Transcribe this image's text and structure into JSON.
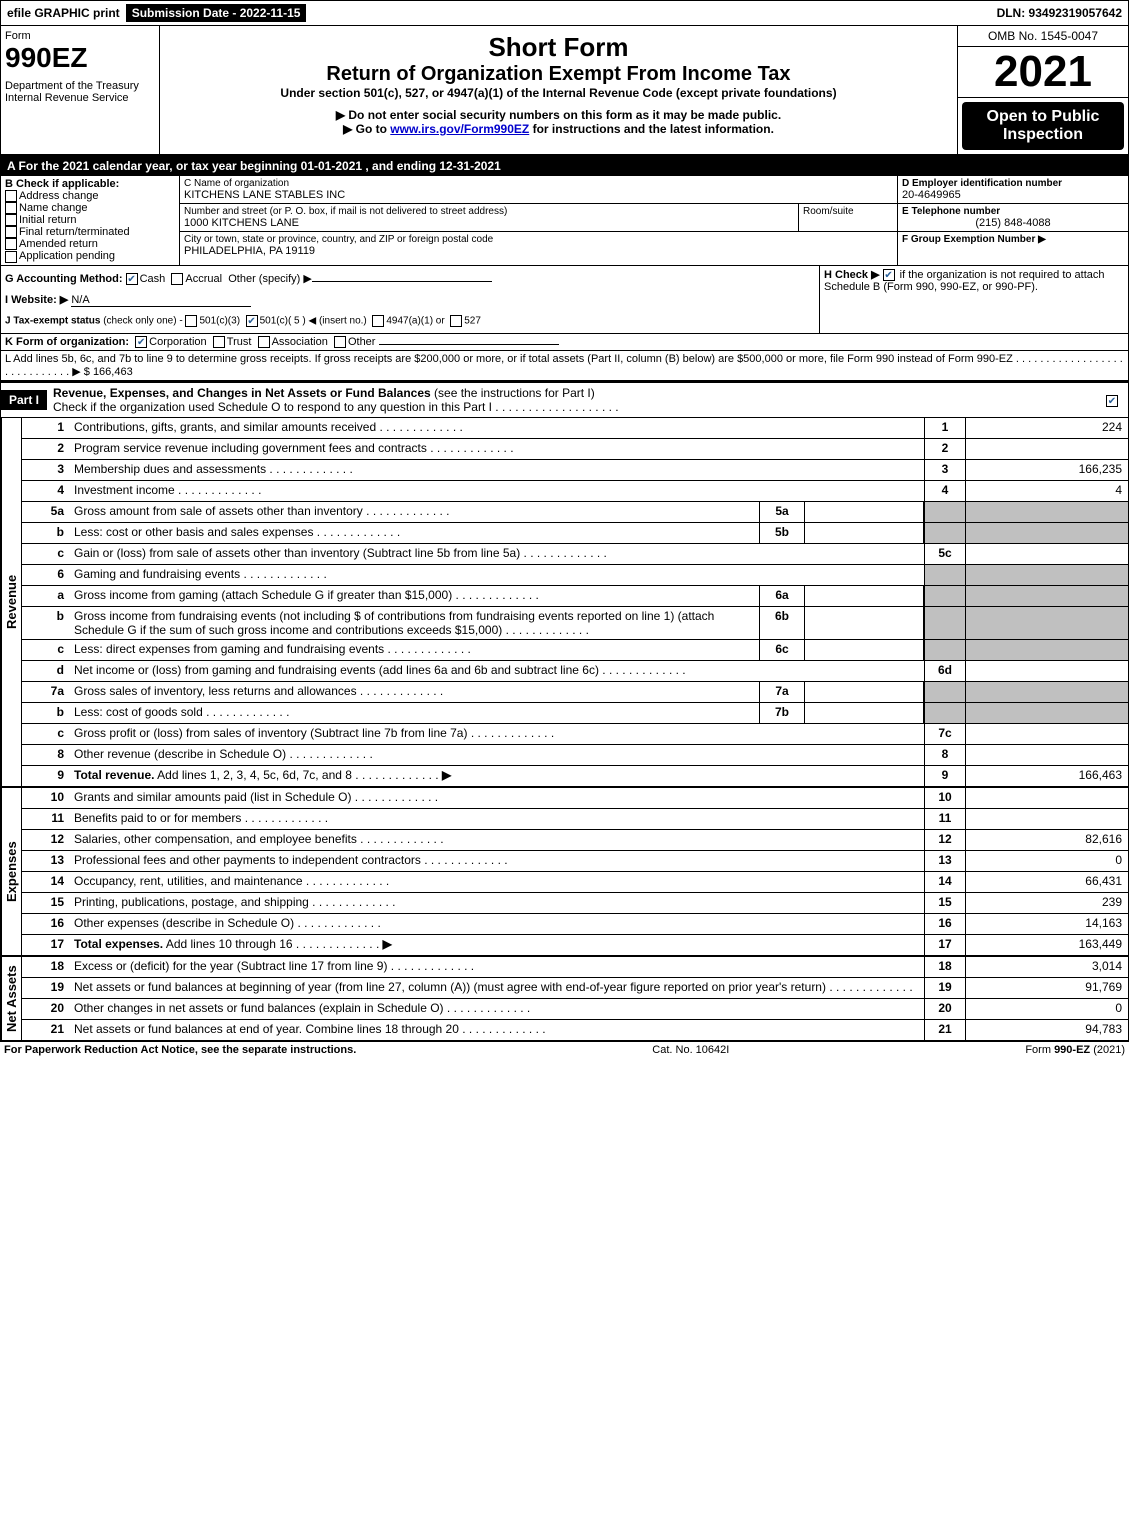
{
  "topbar": {
    "efile_label": "efile GRAPHIC print",
    "submission_label": "Submission Date - 2022-11-15",
    "dln_label": "DLN: 93492319057642"
  },
  "header": {
    "form_label": "Form",
    "form_number": "990EZ",
    "dept1": "Department of the Treasury",
    "dept2": "Internal Revenue Service",
    "short_form": "Short Form",
    "title": "Return of Organization Exempt From Income Tax",
    "subtitle": "Under section 501(c), 527, or 4947(a)(1) of the Internal Revenue Code (except private foundations)",
    "warn1": "▶ Do not enter social security numbers on this form as it may be made public.",
    "warn2_prefix": "▶ Go to ",
    "warn2_link": "www.irs.gov/Form990EZ",
    "warn2_suffix": " for instructions and the latest information.",
    "omb": "OMB No. 1545-0047",
    "year": "2021",
    "open_public": "Open to Public Inspection"
  },
  "section_a": "A  For the 2021 calendar year, or tax year beginning 01-01-2021 , and ending 12-31-2021",
  "box_b": {
    "heading": "B  Check if applicable:",
    "address_change": "Address change",
    "name_change": "Name change",
    "initial_return": "Initial return",
    "final_return": "Final return/terminated",
    "amended_return": "Amended return",
    "application_pending": "Application pending"
  },
  "box_c": {
    "name_label": "C Name of organization",
    "name": "KITCHENS LANE STABLES INC",
    "street_label": "Number and street (or P. O. box, if mail is not delivered to street address)",
    "room_label": "Room/suite",
    "street": "1000 KITCHENS LANE",
    "city_label": "City or town, state or province, country, and ZIP or foreign postal code",
    "city": "PHILADELPHIA, PA  19119"
  },
  "box_d": {
    "label": "D Employer identification number",
    "value": "20-4649965"
  },
  "box_e": {
    "label": "E Telephone number",
    "value": "(215) 848-4088"
  },
  "box_f": {
    "label": "F Group Exemption Number  ▶",
    "value": ""
  },
  "line_g": {
    "label": "G Accounting Method:",
    "opt_cash": "Cash",
    "opt_accrual": "Accrual",
    "opt_other": "Other (specify) ▶"
  },
  "line_h": {
    "label": "H  Check ▶",
    "text": "if the organization is not required to attach Schedule B (Form 990, 990-EZ, or 990-PF)."
  },
  "line_i": {
    "label": "I Website: ▶",
    "value": "N/A"
  },
  "line_j": {
    "label": "J Tax-exempt status",
    "note": "(check only one) -",
    "opt1": "501(c)(3)",
    "opt2": "501(c)( 5 ) ◀ (insert no.)",
    "opt3": "4947(a)(1) or",
    "opt4": "527"
  },
  "line_k": {
    "label": "K Form of organization:",
    "corp": "Corporation",
    "trust": "Trust",
    "assoc": "Association",
    "oth": "Other"
  },
  "line_l": {
    "text": "L Add lines 5b, 6c, and 7b to line 9 to determine gross receipts. If gross receipts are $200,000 or more, or if total assets (Part II, column (B) below) are $500,000 or more, file Form 990 instead of Form 990-EZ",
    "amount": "$ 166,463"
  },
  "part1": {
    "tag": "Part I",
    "title": "Revenue, Expenses, and Changes in Net Assets or Fund Balances",
    "note": "(see the instructions for Part I)",
    "check_text": "Check if the organization used Schedule O to respond to any question in this Part I"
  },
  "section_labels": {
    "revenue": "Revenue",
    "expenses": "Expenses",
    "net_assets": "Net Assets"
  },
  "line_items": {
    "l1": {
      "n": "1",
      "d": "Contributions, gifts, grants, and similar amounts received",
      "box": "1",
      "amt": "224"
    },
    "l2": {
      "n": "2",
      "d": "Program service revenue including government fees and contracts",
      "box": "2",
      "amt": ""
    },
    "l3": {
      "n": "3",
      "d": "Membership dues and assessments",
      "box": "3",
      "amt": "166,235"
    },
    "l4": {
      "n": "4",
      "d": "Investment income",
      "box": "4",
      "amt": "4"
    },
    "l5a": {
      "n": "5a",
      "d": "Gross amount from sale of assets other than inventory",
      "sub": "5a"
    },
    "l5b": {
      "n": "b",
      "d": "Less: cost or other basis and sales expenses",
      "sub": "5b"
    },
    "l5c": {
      "n": "c",
      "d": "Gain or (loss) from sale of assets other than inventory (Subtract line 5b from line 5a)",
      "box": "5c",
      "amt": ""
    },
    "l6": {
      "n": "6",
      "d": "Gaming and fundraising events"
    },
    "l6a": {
      "n": "a",
      "d": "Gross income from gaming (attach Schedule G if greater than $15,000)",
      "sub": "6a"
    },
    "l6b": {
      "n": "b",
      "d1": "Gross income from fundraising events (not including $",
      "d2": "of contributions from fundraising events reported on line 1) (attach Schedule G if the sum of such gross income and contributions exceeds $15,000)",
      "sub": "6b"
    },
    "l6c": {
      "n": "c",
      "d": "Less: direct expenses from gaming and fundraising events",
      "sub": "6c"
    },
    "l6d": {
      "n": "d",
      "d": "Net income or (loss) from gaming and fundraising events (add lines 6a and 6b and subtract line 6c)",
      "box": "6d",
      "amt": ""
    },
    "l7a": {
      "n": "7a",
      "d": "Gross sales of inventory, less returns and allowances",
      "sub": "7a"
    },
    "l7b": {
      "n": "b",
      "d": "Less: cost of goods sold",
      "sub": "7b"
    },
    "l7c": {
      "n": "c",
      "d": "Gross profit or (loss) from sales of inventory (Subtract line 7b from line 7a)",
      "box": "7c",
      "amt": ""
    },
    "l8": {
      "n": "8",
      "d": "Other revenue (describe in Schedule O)",
      "box": "8",
      "amt": ""
    },
    "l9": {
      "n": "9",
      "d": "Total revenue. Add lines 1, 2, 3, 4, 5c, 6d, 7c, and 8",
      "box": "9",
      "amt": "166,463",
      "arrow": true,
      "bold": true
    },
    "l10": {
      "n": "10",
      "d": "Grants and similar amounts paid (list in Schedule O)",
      "box": "10",
      "amt": ""
    },
    "l11": {
      "n": "11",
      "d": "Benefits paid to or for members",
      "box": "11",
      "amt": ""
    },
    "l12": {
      "n": "12",
      "d": "Salaries, other compensation, and employee benefits",
      "box": "12",
      "amt": "82,616"
    },
    "l13": {
      "n": "13",
      "d": "Professional fees and other payments to independent contractors",
      "box": "13",
      "amt": "0"
    },
    "l14": {
      "n": "14",
      "d": "Occupancy, rent, utilities, and maintenance",
      "box": "14",
      "amt": "66,431"
    },
    "l15": {
      "n": "15",
      "d": "Printing, publications, postage, and shipping",
      "box": "15",
      "amt": "239"
    },
    "l16": {
      "n": "16",
      "d": "Other expenses (describe in Schedule O)",
      "box": "16",
      "amt": "14,163"
    },
    "l17": {
      "n": "17",
      "d": "Total expenses. Add lines 10 through 16",
      "box": "17",
      "amt": "163,449",
      "arrow": true,
      "bold": true
    },
    "l18": {
      "n": "18",
      "d": "Excess or (deficit) for the year (Subtract line 17 from line 9)",
      "box": "18",
      "amt": "3,014"
    },
    "l19": {
      "n": "19",
      "d": "Net assets or fund balances at beginning of year (from line 27, column (A)) (must agree with end-of-year figure reported on prior year's return)",
      "box": "19",
      "amt": "91,769"
    },
    "l20": {
      "n": "20",
      "d": "Other changes in net assets or fund balances (explain in Schedule O)",
      "box": "20",
      "amt": "0"
    },
    "l21": {
      "n": "21",
      "d": "Net assets or fund balances at end of year. Combine lines 18 through 20",
      "box": "21",
      "amt": "94,783"
    }
  },
  "footer": {
    "left": "For Paperwork Reduction Act Notice, see the separate instructions.",
    "center": "Cat. No. 10642I",
    "right": "Form 990-EZ (2021)"
  }
}
